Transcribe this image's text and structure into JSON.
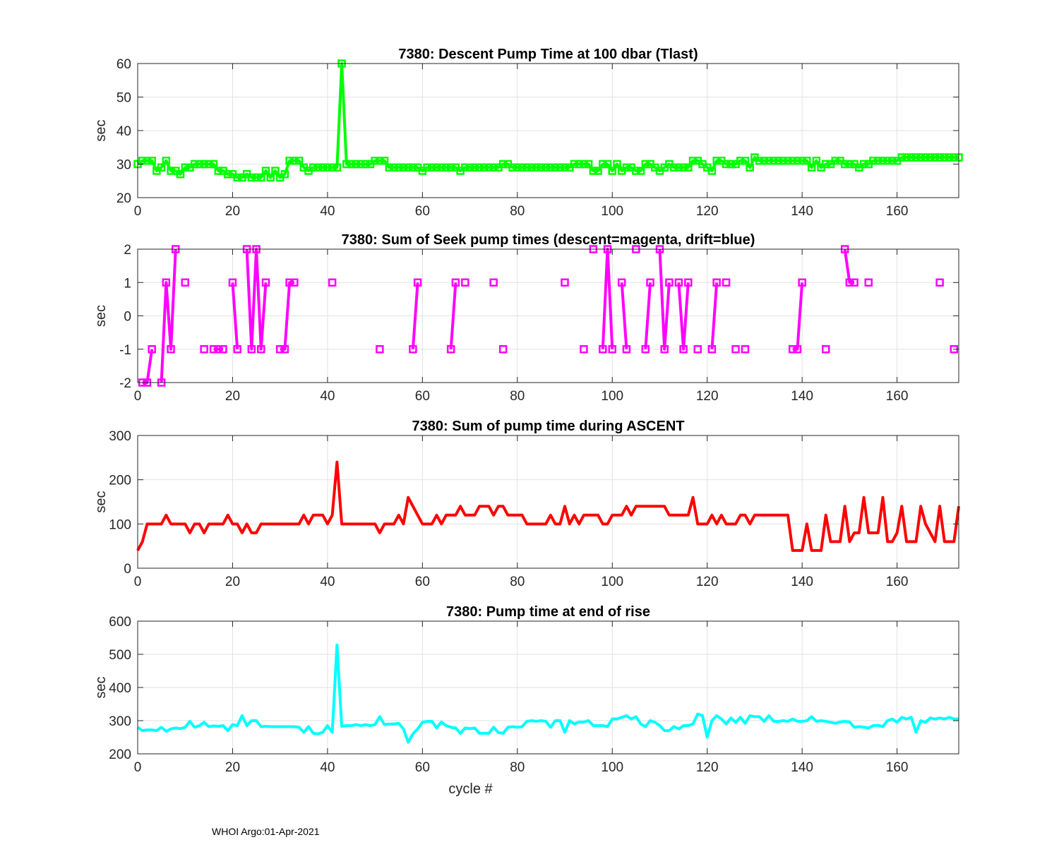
{
  "footer": "WHOI Argo:01-Apr-2021",
  "chart_data": [
    {
      "type": "line",
      "title": "7380: Descent Pump Time at 100 dbar (Tlast)",
      "xlabel": "",
      "ylabel": "sec",
      "xlim": [
        0,
        173
      ],
      "ylim": [
        20,
        60
      ],
      "xticks": [
        0,
        20,
        40,
        60,
        80,
        100,
        120,
        140,
        160
      ],
      "yticks": [
        20,
        30,
        40,
        50,
        60
      ],
      "grid": true,
      "color": "#00ff00",
      "marker": "square",
      "x": [
        0,
        1,
        2,
        3,
        4,
        5,
        6,
        7,
        8,
        9,
        10,
        11,
        12,
        13,
        14,
        15,
        16,
        17,
        18,
        19,
        20,
        21,
        22,
        23,
        24,
        25,
        26,
        27,
        28,
        29,
        30,
        31,
        32,
        33,
        34,
        35,
        36,
        37,
        38,
        39,
        40,
        41,
        42,
        43,
        44,
        45,
        46,
        47,
        48,
        49,
        50,
        51,
        52,
        53,
        54,
        55,
        56,
        57,
        58,
        59,
        60,
        61,
        62,
        63,
        64,
        65,
        66,
        67,
        68,
        69,
        70,
        71,
        72,
        73,
        74,
        75,
        76,
        77,
        78,
        79,
        80,
        81,
        82,
        83,
        84,
        85,
        86,
        87,
        88,
        89,
        90,
        91,
        92,
        93,
        94,
        95,
        96,
        97,
        98,
        99,
        100,
        101,
        102,
        103,
        104,
        105,
        106,
        107,
        108,
        109,
        110,
        111,
        112,
        113,
        114,
        115,
        116,
        117,
        118,
        119,
        120,
        121,
        122,
        123,
        124,
        125,
        126,
        127,
        128,
        129,
        130,
        131,
        132,
        133,
        134,
        135,
        136,
        137,
        138,
        139,
        140,
        141,
        142,
        143,
        144,
        145,
        146,
        147,
        148,
        149,
        150,
        151,
        152,
        153,
        154,
        155,
        156,
        157,
        158,
        159,
        160,
        161,
        162,
        163,
        164,
        165,
        166,
        167,
        168,
        169,
        170,
        171,
        172,
        173
      ],
      "y": [
        30,
        31,
        31,
        31,
        28,
        29,
        31,
        28,
        28,
        27,
        29,
        29,
        30,
        30,
        30,
        30,
        30,
        28,
        28,
        27,
        27,
        26,
        26,
        27,
        26,
        26,
        26,
        28,
        26,
        28,
        26,
        27,
        31,
        31,
        31,
        29,
        28,
        29,
        29,
        29,
        29,
        29,
        29,
        60,
        30,
        30,
        30,
        30,
        30,
        30,
        31,
        31,
        31,
        29,
        29,
        29,
        29,
        29,
        29,
        29,
        28,
        29,
        29,
        29,
        29,
        29,
        29,
        29,
        28,
        29,
        29,
        29,
        29,
        29,
        29,
        29,
        29,
        30,
        30,
        29,
        29,
        29,
        29,
        29,
        29,
        29,
        29,
        29,
        29,
        29,
        29,
        29,
        30,
        30,
        30,
        30,
        28,
        28,
        30,
        30,
        28,
        30,
        28,
        29,
        29,
        28,
        28,
        30,
        30,
        29,
        28,
        29,
        30,
        29,
        29,
        29,
        29,
        31,
        31,
        30,
        29,
        28,
        31,
        31,
        30,
        30,
        30,
        31,
        31,
        29,
        32,
        31,
        31,
        31,
        31,
        31,
        31,
        31,
        31,
        31,
        31,
        31,
        29,
        31,
        29,
        30,
        30,
        31,
        31,
        30,
        30,
        30,
        29,
        30,
        30,
        31,
        31,
        31,
        31,
        31,
        31,
        32,
        32,
        32,
        32,
        32,
        32,
        32,
        32,
        32,
        32,
        32,
        32,
        32
      ]
    },
    {
      "type": "line",
      "title": "7380: Sum of Seek pump times (descent=magenta, drift=blue)",
      "xlabel": "",
      "ylabel": "sec",
      "xlim": [
        0,
        173
      ],
      "ylim": [
        -2,
        2
      ],
      "xticks": [
        0,
        20,
        40,
        60,
        80,
        100,
        120,
        140,
        160
      ],
      "yticks": [
        -2,
        -1,
        0,
        1,
        2
      ],
      "grid": true,
      "color": "#ff00ff",
      "marker": "square",
      "segments": [
        [
          [
            1,
            -2
          ],
          [
            2,
            -2
          ],
          [
            3,
            -1
          ]
        ],
        [
          [
            5,
            -2
          ],
          [
            6,
            1
          ],
          [
            7,
            -1
          ],
          [
            8,
            2
          ]
        ],
        [
          [
            10,
            1
          ]
        ],
        [
          [
            14,
            -1
          ]
        ],
        [
          [
            16,
            -1
          ],
          [
            17,
            -1
          ],
          [
            18,
            -1
          ]
        ],
        [
          [
            20,
            1
          ],
          [
            21,
            -1
          ]
        ],
        [
          [
            23,
            2
          ],
          [
            24,
            -1
          ],
          [
            25,
            2
          ],
          [
            26,
            -1
          ],
          [
            27,
            1
          ]
        ],
        [
          [
            30,
            -1
          ],
          [
            31,
            -1
          ],
          [
            32,
            1
          ],
          [
            33,
            1
          ]
        ],
        [
          [
            41,
            1
          ]
        ],
        [
          [
            51,
            -1
          ]
        ],
        [
          [
            58,
            -1
          ],
          [
            59,
            1
          ]
        ],
        [
          [
            66,
            -1
          ],
          [
            67,
            1
          ]
        ],
        [
          [
            69,
            1
          ]
        ],
        [
          [
            75,
            1
          ]
        ],
        [
          [
            77,
            -1
          ]
        ],
        [
          [
            90,
            1
          ]
        ],
        [
          [
            94,
            -1
          ]
        ],
        [
          [
            96,
            2
          ]
        ],
        [
          [
            98,
            -1
          ],
          [
            99,
            2
          ],
          [
            100,
            -1
          ]
        ],
        [
          [
            102,
            1
          ],
          [
            103,
            -1
          ]
        ],
        [
          [
            105,
            2
          ]
        ],
        [
          [
            107,
            -1
          ],
          [
            108,
            1
          ]
        ],
        [
          [
            110,
            2
          ],
          [
            111,
            -1
          ],
          [
            112,
            1
          ]
        ],
        [
          [
            114,
            1
          ],
          [
            115,
            -1
          ],
          [
            116,
            1
          ]
        ],
        [
          [
            118,
            -1
          ]
        ],
        [
          [
            121,
            -1
          ],
          [
            122,
            1
          ]
        ],
        [
          [
            124,
            1
          ]
        ],
        [
          [
            126,
            -1
          ]
        ],
        [
          [
            128,
            -1
          ]
        ],
        [
          [
            138,
            -1
          ],
          [
            139,
            -1
          ],
          [
            140,
            1
          ]
        ],
        [
          [
            145,
            -1
          ]
        ],
        [
          [
            149,
            2
          ],
          [
            150,
            1
          ],
          [
            151,
            1
          ]
        ],
        [
          [
            154,
            1
          ]
        ],
        [
          [
            169,
            1
          ]
        ],
        [
          [
            172,
            -1
          ]
        ]
      ]
    },
    {
      "type": "line",
      "title": "7380: Sum of pump time during ASCENT",
      "xlabel": "",
      "ylabel": "sec",
      "xlim": [
        0,
        173
      ],
      "ylim": [
        0,
        300
      ],
      "xticks": [
        0,
        20,
        40,
        60,
        80,
        100,
        120,
        140,
        160
      ],
      "yticks": [
        0,
        100,
        200,
        300
      ],
      "grid": true,
      "color": "#ff0000",
      "x": [
        0,
        1,
        2,
        3,
        4,
        5,
        6,
        7,
        8,
        9,
        10,
        11,
        12,
        13,
        14,
        15,
        16,
        17,
        18,
        19,
        20,
        21,
        22,
        23,
        24,
        25,
        26,
        27,
        28,
        29,
        30,
        31,
        32,
        33,
        34,
        35,
        36,
        37,
        38,
        39,
        40,
        41,
        42,
        43,
        44,
        45,
        46,
        47,
        48,
        49,
        50,
        51,
        52,
        53,
        54,
        55,
        56,
        57,
        58,
        59,
        60,
        61,
        62,
        63,
        64,
        65,
        66,
        67,
        68,
        69,
        70,
        71,
        72,
        73,
        74,
        75,
        76,
        77,
        78,
        79,
        80,
        81,
        82,
        83,
        84,
        85,
        86,
        87,
        88,
        89,
        90,
        91,
        92,
        93,
        94,
        95,
        96,
        97,
        98,
        99,
        100,
        101,
        102,
        103,
        104,
        105,
        106,
        107,
        108,
        109,
        110,
        111,
        112,
        113,
        114,
        115,
        116,
        117,
        118,
        119,
        120,
        121,
        122,
        123,
        124,
        125,
        126,
        127,
        128,
        129,
        130,
        131,
        132,
        133,
        134,
        135,
        136,
        137,
        138,
        139,
        140,
        141,
        142,
        143,
        144,
        145,
        146,
        147,
        148,
        149,
        150,
        151,
        152,
        153,
        154,
        155,
        156,
        157,
        158,
        159,
        160,
        161,
        162,
        163,
        164,
        165,
        166,
        167,
        168,
        169,
        170,
        171,
        172,
        173
      ],
      "y": [
        40,
        60,
        100,
        100,
        100,
        100,
        120,
        100,
        100,
        100,
        100,
        80,
        100,
        100,
        80,
        100,
        100,
        100,
        100,
        120,
        100,
        100,
        80,
        100,
        80,
        80,
        100,
        100,
        100,
        100,
        100,
        100,
        100,
        100,
        100,
        120,
        100,
        120,
        120,
        120,
        100,
        120,
        240,
        100,
        100,
        100,
        100,
        100,
        100,
        100,
        100,
        80,
        100,
        100,
        100,
        120,
        100,
        160,
        140,
        120,
        100,
        100,
        100,
        120,
        100,
        120,
        120,
        120,
        140,
        120,
        120,
        120,
        140,
        140,
        140,
        120,
        140,
        140,
        120,
        120,
        120,
        120,
        100,
        100,
        100,
        100,
        100,
        120,
        100,
        100,
        140,
        100,
        120,
        100,
        120,
        120,
        120,
        120,
        100,
        100,
        120,
        120,
        120,
        140,
        120,
        140,
        140,
        140,
        140,
        140,
        140,
        140,
        120,
        120,
        120,
        120,
        120,
        160,
        100,
        100,
        100,
        120,
        100,
        120,
        100,
        100,
        100,
        120,
        120,
        100,
        120,
        120,
        120,
        120,
        120,
        120,
        120,
        120,
        40,
        40,
        40,
        100,
        40,
        40,
        40,
        120,
        60,
        60,
        60,
        140,
        60,
        80,
        80,
        160,
        80,
        80,
        80,
        160,
        60,
        60,
        80,
        140,
        60,
        60,
        60,
        140,
        100,
        80,
        60,
        140,
        60,
        60,
        60,
        140
      ]
    },
    {
      "type": "line",
      "title": "7380: Pump time at end of rise",
      "xlabel": "cycle #",
      "ylabel": "sec",
      "xlim": [
        0,
        173
      ],
      "ylim": [
        200,
        600
      ],
      "xticks": [
        0,
        20,
        40,
        60,
        80,
        100,
        120,
        140,
        160
      ],
      "yticks": [
        200,
        300,
        400,
        500,
        600
      ],
      "grid": true,
      "color": "#00ffff",
      "x": [
        0,
        1,
        2,
        3,
        4,
        5,
        6,
        7,
        8,
        9,
        10,
        11,
        12,
        13,
        14,
        15,
        16,
        17,
        18,
        19,
        20,
        21,
        22,
        23,
        24,
        25,
        26,
        27,
        28,
        29,
        30,
        31,
        32,
        33,
        34,
        35,
        36,
        37,
        38,
        39,
        40,
        41,
        42,
        43,
        44,
        45,
        46,
        47,
        48,
        49,
        50,
        51,
        52,
        53,
        54,
        55,
        56,
        57,
        58,
        59,
        60,
        61,
        62,
        63,
        64,
        65,
        66,
        67,
        68,
        69,
        70,
        71,
        72,
        73,
        74,
        75,
        76,
        77,
        78,
        79,
        80,
        81,
        82,
        83,
        84,
        85,
        86,
        87,
        88,
        89,
        90,
        91,
        92,
        93,
        94,
        95,
        96,
        97,
        98,
        99,
        100,
        101,
        102,
        103,
        104,
        105,
        106,
        107,
        108,
        109,
        110,
        111,
        112,
        113,
        114,
        115,
        116,
        117,
        118,
        119,
        120,
        121,
        122,
        123,
        124,
        125,
        126,
        127,
        128,
        129,
        130,
        131,
        132,
        133,
        134,
        135,
        136,
        137,
        138,
        139,
        140,
        141,
        142,
        143,
        144,
        145,
        146,
        147,
        148,
        149,
        150,
        151,
        152,
        153,
        154,
        155,
        156,
        157,
        158,
        159,
        160,
        161,
        162,
        163,
        164,
        165,
        166,
        167,
        168,
        169,
        170,
        171,
        172,
        173
      ],
      "y": [
        280,
        270,
        272,
        272,
        270,
        280,
        268,
        275,
        278,
        276,
        280,
        298,
        280,
        285,
        295,
        282,
        284,
        283,
        285,
        270,
        288,
        285,
        315,
        285,
        300,
        300,
        282,
        283,
        282,
        282,
        282,
        282,
        282,
        282,
        280,
        265,
        282,
        262,
        260,
        265,
        285,
        265,
        528,
        283,
        285,
        285,
        288,
        285,
        288,
        285,
        288,
        312,
        288,
        290,
        290,
        292,
        275,
        235,
        260,
        275,
        295,
        298,
        298,
        278,
        296,
        285,
        280,
        278,
        262,
        278,
        276,
        278,
        262,
        262,
        262,
        280,
        264,
        262,
        280,
        282,
        280,
        282,
        298,
        300,
        298,
        300,
        298,
        280,
        300,
        300,
        265,
        300,
        290,
        296,
        296,
        300,
        285,
        285,
        285,
        282,
        305,
        305,
        310,
        315,
        305,
        312,
        290,
        282,
        300,
        295,
        285,
        270,
        270,
        282,
        275,
        285,
        285,
        290,
        320,
        315,
        250,
        300,
        315,
        305,
        290,
        308,
        295,
        310,
        292,
        315,
        312,
        312,
        298,
        315,
        298,
        298,
        300,
        298,
        305,
        298,
        298,
        300,
        312,
        298,
        300,
        298,
        295,
        292,
        296,
        298,
        296,
        280,
        282,
        280,
        278,
        285,
        286,
        282,
        300,
        305,
        295,
        310,
        305,
        310,
        265,
        300,
        295,
        308,
        305,
        308,
        305,
        310,
        305,
        305
      ]
    }
  ]
}
